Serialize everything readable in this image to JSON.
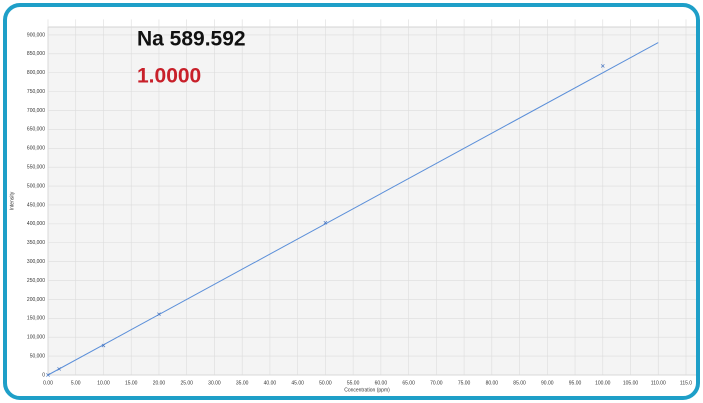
{
  "chart_data": {
    "type": "scatter",
    "title": "Na 589.592",
    "subtitle": "1.0000",
    "x_label": "Concentration (ppm)",
    "y_label": "Intensity",
    "points": {
      "x": [
        0,
        2,
        10,
        20,
        50,
        100
      ],
      "y": [
        0,
        16000,
        78000,
        161000,
        403000,
        818000
      ],
      "color": "#4a78c2"
    },
    "fit_line": {
      "x": [
        0,
        110
      ],
      "y": [
        0,
        880000
      ],
      "color": "#5b8fd9"
    },
    "xlim": [
      0,
      115
    ],
    "ylim": [
      0,
      920000
    ],
    "xticks": [
      {
        "value": 0,
        "label": "0.00"
      },
      {
        "value": 5,
        "label": "5.00"
      },
      {
        "value": 10,
        "label": "10.00"
      },
      {
        "value": 15,
        "label": "15.00"
      },
      {
        "value": 20,
        "label": "20.00"
      },
      {
        "value": 25,
        "label": "25.00"
      },
      {
        "value": 30,
        "label": "30.00"
      },
      {
        "value": 35,
        "label": "35.00"
      },
      {
        "value": 40,
        "label": "40.00"
      },
      {
        "value": 45,
        "label": "45.00"
      },
      {
        "value": 50,
        "label": "50.00"
      },
      {
        "value": 55,
        "label": "55.00"
      },
      {
        "value": 60,
        "label": "60.00"
      },
      {
        "value": 65,
        "label": "65.00"
      },
      {
        "value": 70,
        "label": "70.00"
      },
      {
        "value": 75,
        "label": "75.00"
      },
      {
        "value": 80,
        "label": "80.00"
      },
      {
        "value": 85,
        "label": "85.00"
      },
      {
        "value": 90,
        "label": "90.00"
      },
      {
        "value": 95,
        "label": "95.00"
      },
      {
        "value": 100,
        "label": "100.00"
      },
      {
        "value": 105,
        "label": "105.00"
      },
      {
        "value": 110,
        "label": "110.00"
      },
      {
        "value": 115,
        "label": "115.0"
      }
    ],
    "yticks": [
      0,
      {
        "value": 50000,
        "label": "50,000"
      },
      {
        "value": 100000,
        "label": "100,000"
      },
      {
        "value": 150000,
        "label": "150,000"
      },
      {
        "value": 200000,
        "label": "200,000"
      },
      {
        "value": 250000,
        "label": "250,000"
      },
      {
        "value": 300000,
        "label": "300,000"
      },
      {
        "value": 350000,
        "label": "350,000"
      },
      {
        "value": 400000,
        "label": "400,000"
      },
      {
        "value": 450000,
        "label": "450,000"
      },
      {
        "value": 500000,
        "label": "500,000"
      },
      {
        "value": 550000,
        "label": "550,000"
      },
      {
        "value": 600000,
        "label": "600,000"
      },
      {
        "value": 650000,
        "label": "650,000"
      },
      {
        "value": 700000,
        "label": "700,000"
      },
      {
        "value": 750000,
        "label": "750,000"
      },
      {
        "value": 800000,
        "label": "800,000"
      },
      {
        "value": 850000,
        "label": "850,000"
      },
      {
        "value": 900000,
        "label": "900,000"
      }
    ],
    "grid": true
  }
}
